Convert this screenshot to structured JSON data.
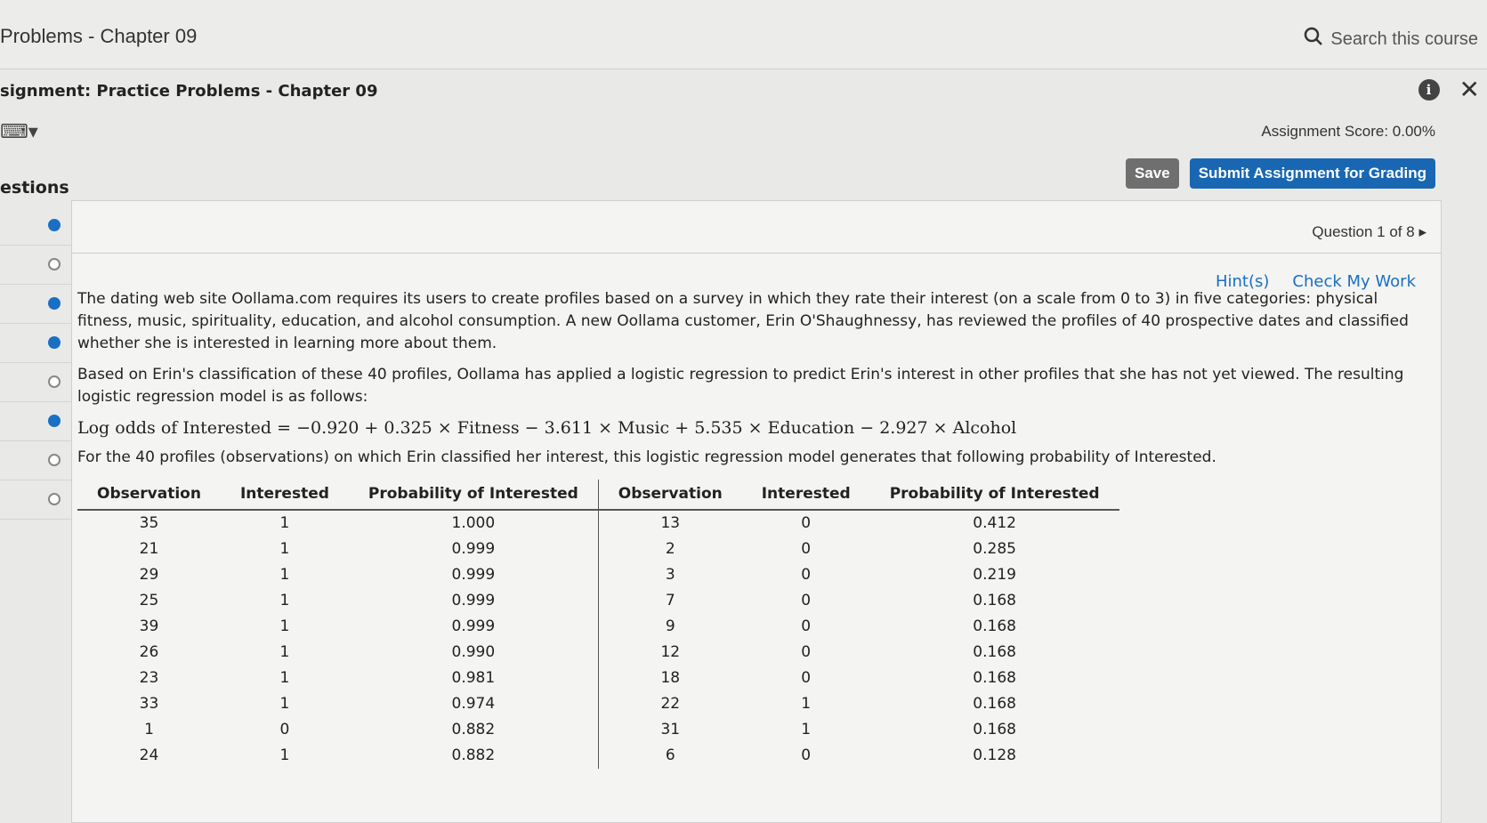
{
  "header": {
    "title": "Problems - Chapter 09",
    "search_placeholder": "Search this course"
  },
  "assignment": {
    "title": "signment: Practice Problems - Chapter 09",
    "score": "Assignment Score: 0.00%",
    "save_label": "Save",
    "submit_label": "Submit Assignment for Grading"
  },
  "sidebar": {
    "label": "estions",
    "items": [
      {
        "answered": true
      },
      {
        "answered": false
      },
      {
        "answered": true
      },
      {
        "answered": true
      },
      {
        "answered": false
      },
      {
        "answered": true
      },
      {
        "answered": false
      },
      {
        "answered": false
      }
    ]
  },
  "question": {
    "nav": "Question 1 of 8",
    "hints": "Hint(s)",
    "check": "Check My Work",
    "p1": "The dating web site Oollama.com requires its users to create profiles based on a survey in which they rate their interest (on a scale from 0 to 3) in five categories: physical fitness, music, spirituality, education, and alcohol consumption. A new Oollama customer, Erin O'Shaughnessy, has reviewed the profiles of 40 prospective dates and classified whether she is interested in learning more about them.",
    "p2": "Based on Erin's classification of these 40 profiles, Oollama has applied a logistic regression to predict Erin's interest in other profiles that she has not yet viewed. The resulting logistic regression model is as follows:",
    "equation": "Log odds of Interested = −0.920 + 0.325 × Fitness − 3.611 × Music + 5.535 × Education − 2.927 × Alcohol",
    "p3": "For the 40 profiles (observations) on which Erin classified her interest, this logistic regression model generates that following probability of Interested."
  },
  "table": {
    "headers": [
      "Observation",
      "Interested",
      "Probability of Interested",
      "Observation",
      "Interested",
      "Probability of Interested"
    ],
    "rows": [
      [
        "35",
        "1",
        "1.000",
        "13",
        "0",
        "0.412"
      ],
      [
        "21",
        "1",
        "0.999",
        "2",
        "0",
        "0.285"
      ],
      [
        "29",
        "1",
        "0.999",
        "3",
        "0",
        "0.219"
      ],
      [
        "25",
        "1",
        "0.999",
        "7",
        "0",
        "0.168"
      ],
      [
        "39",
        "1",
        "0.999",
        "9",
        "0",
        "0.168"
      ],
      [
        "26",
        "1",
        "0.990",
        "12",
        "0",
        "0.168"
      ],
      [
        "23",
        "1",
        "0.981",
        "18",
        "0",
        "0.168"
      ],
      [
        "33",
        "1",
        "0.974",
        "22",
        "1",
        "0.168"
      ],
      [
        "1",
        "0",
        "0.882",
        "31",
        "1",
        "0.168"
      ],
      [
        "24",
        "1",
        "0.882",
        "6",
        "0",
        "0.128"
      ]
    ]
  },
  "colors": {
    "accent": "#1a6fc4",
    "submit": "#1967b3",
    "save": "#6f6f6f"
  }
}
